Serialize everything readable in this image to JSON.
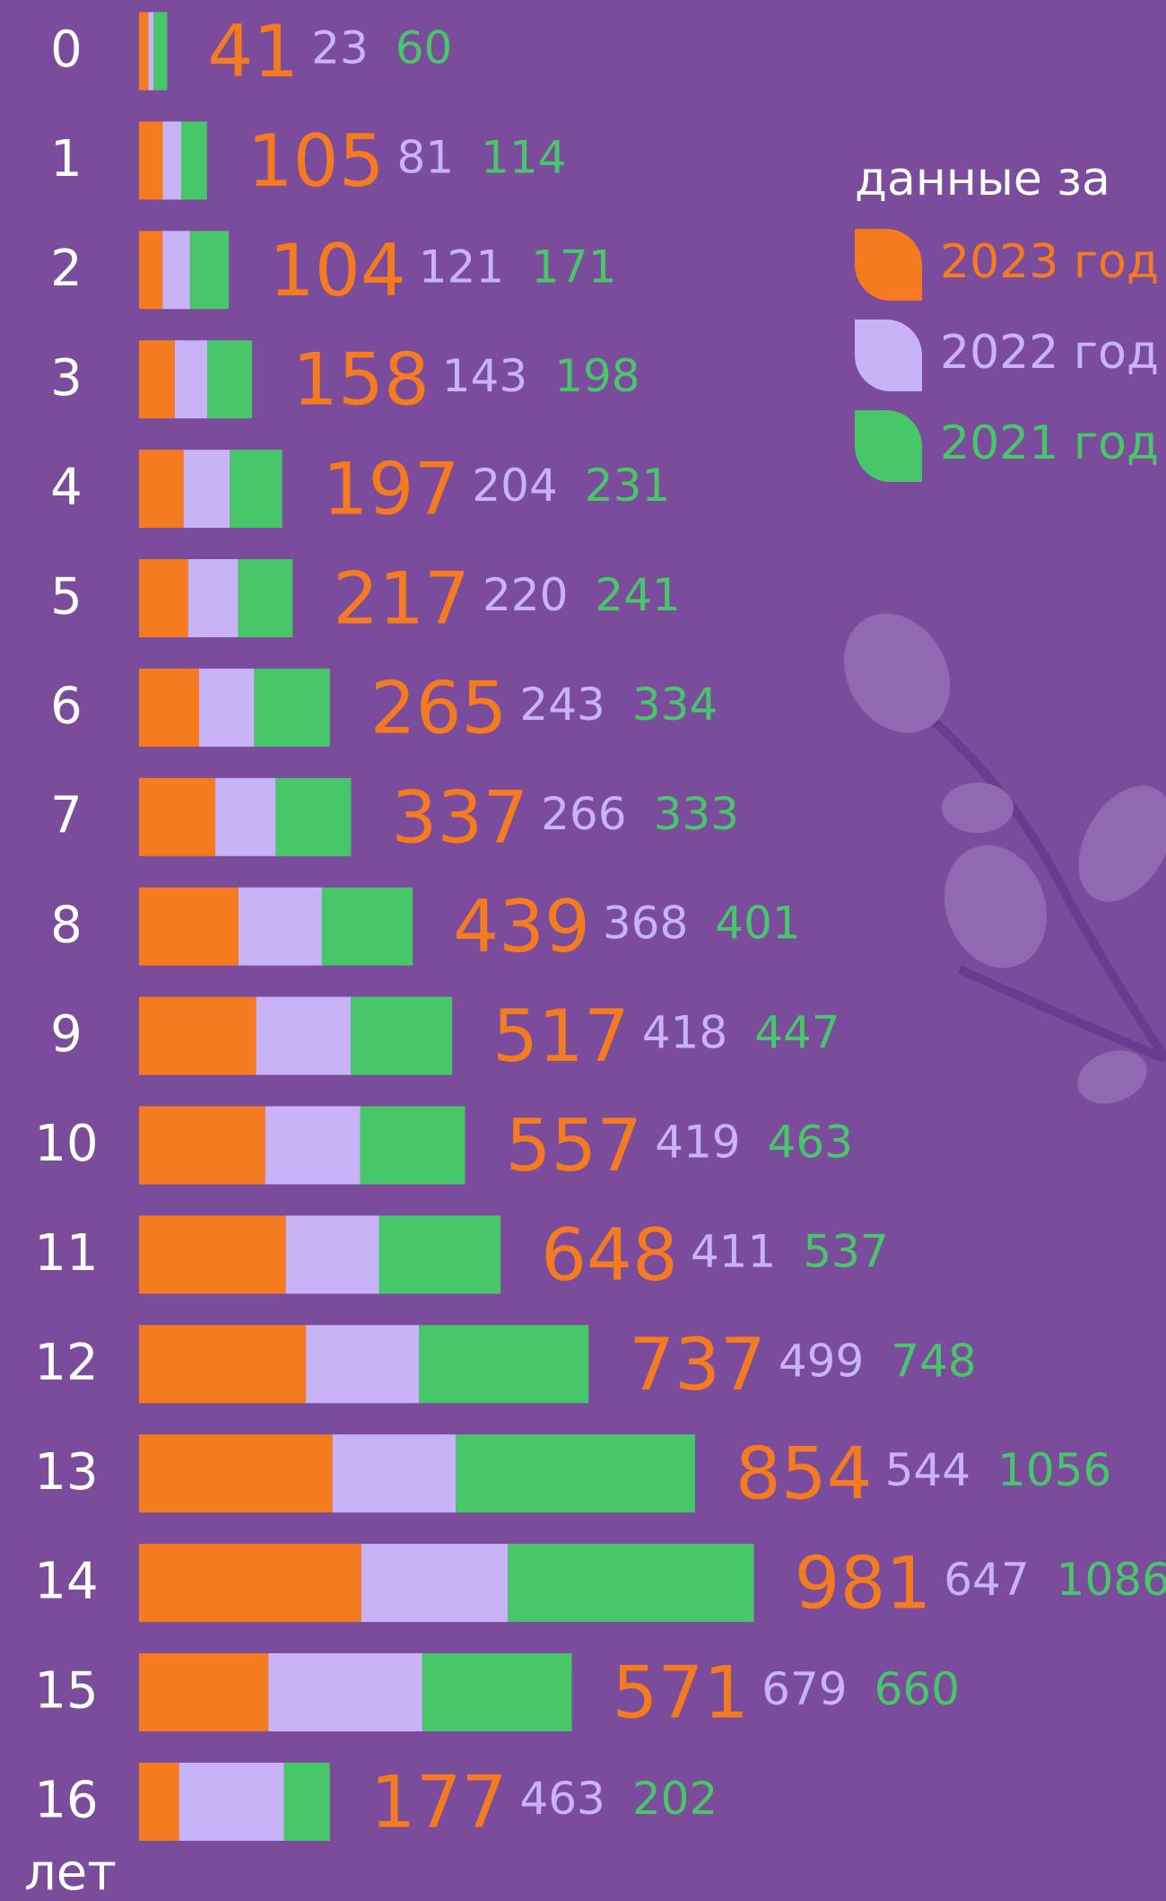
{
  "chart_data": {
    "type": "stacked-bar-horizontal",
    "legend_title": "данные за",
    "ylabel": "лет",
    "categories": [
      "0",
      "1",
      "2",
      "3",
      "4",
      "5",
      "6",
      "7",
      "8",
      "9",
      "10",
      "11",
      "12",
      "13",
      "14",
      "15",
      "16"
    ],
    "series": [
      {
        "name": "2023 год",
        "color": "#f47b20",
        "values": [
          41,
          105,
          104,
          158,
          197,
          217,
          265,
          337,
          439,
          517,
          557,
          648,
          737,
          854,
          981,
          571,
          177
        ]
      },
      {
        "name": "2022 год",
        "color": "#c9b3f7",
        "values": [
          23,
          81,
          121,
          143,
          204,
          220,
          243,
          266,
          368,
          418,
          419,
          411,
          499,
          544,
          647,
          679,
          463
        ]
      },
      {
        "name": "2021 год",
        "color": "#48c76a",
        "values": [
          60,
          114,
          171,
          198,
          231,
          241,
          334,
          333,
          401,
          447,
          463,
          537,
          748,
          1056,
          1086,
          660,
          202
        ]
      }
    ]
  }
}
